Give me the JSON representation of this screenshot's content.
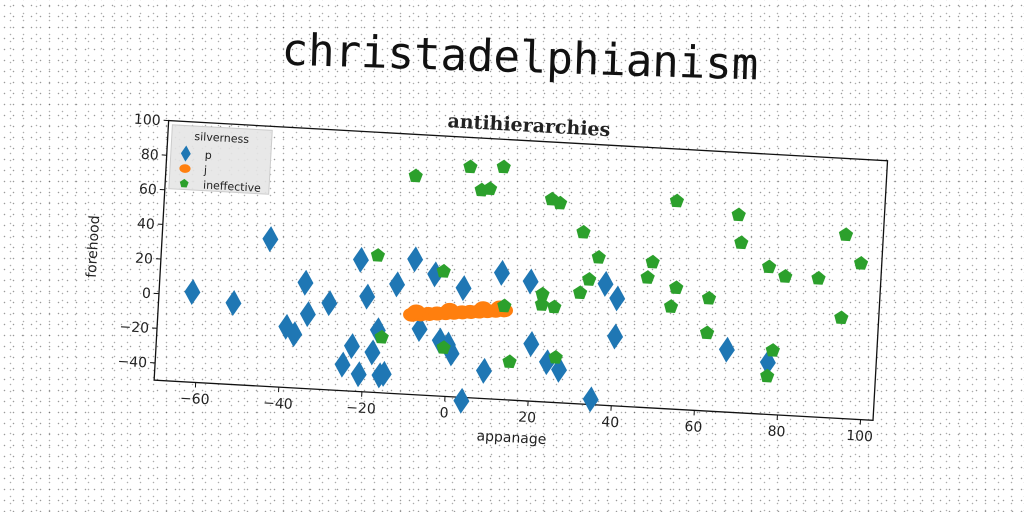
{
  "heading": "christadelphianism",
  "chart_data": {
    "type": "scatter",
    "title": "antihierarchies",
    "xlabel": "appanage",
    "ylabel": "forehood",
    "xlim": [
      -70,
      103
    ],
    "ylim": [
      -50,
      100
    ],
    "x_ticks": [
      -60,
      -40,
      -20,
      0,
      20,
      40,
      60,
      80,
      100
    ],
    "y_ticks": [
      -40,
      -20,
      0,
      20,
      40,
      60,
      80,
      100
    ],
    "grid": false,
    "legend": {
      "title": "silverness",
      "placement": "top-left"
    },
    "series": [
      {
        "name": "p",
        "marker": "diamond",
        "color": "#1f77b4",
        "points": [
          [
            -62,
            2
          ],
          [
            -52,
            -3
          ],
          [
            -44,
            35
          ],
          [
            -39,
            -15
          ],
          [
            -37,
            -19
          ],
          [
            -35,
            11
          ],
          [
            -34,
            -7
          ],
          [
            -29,
            0
          ],
          [
            -25,
            -35
          ],
          [
            -23,
            -24
          ],
          [
            -22,
            26
          ],
          [
            -21,
            -40
          ],
          [
            -20,
            5
          ],
          [
            -18,
            -27
          ],
          [
            -17,
            -14
          ],
          [
            -16,
            -40
          ],
          [
            -15,
            -39
          ],
          [
            -13,
            13
          ],
          [
            -9,
            28
          ],
          [
            -7,
            -12
          ],
          [
            -4,
            20
          ],
          [
            -2,
            -18
          ],
          [
            0,
            -20
          ],
          [
            1,
            -25
          ],
          [
            3,
            13
          ],
          [
            4,
            -52
          ],
          [
            9,
            -34
          ],
          [
            12,
            23
          ],
          [
            19,
            19
          ],
          [
            20,
            -17
          ],
          [
            24,
            -27
          ],
          [
            27,
            -31
          ],
          [
            35,
            -47
          ],
          [
            37,
            20
          ],
          [
            40,
            12
          ],
          [
            40,
            -10
          ],
          [
            67,
            -14
          ],
          [
            77,
            -20
          ]
        ]
      },
      {
        "name": "j",
        "marker": "circle",
        "color": "#ff7f0e",
        "points": [
          [
            -9,
            -4
          ],
          [
            -7,
            -3.5
          ],
          [
            -5,
            -3
          ],
          [
            -3,
            -2.5
          ],
          [
            -1,
            -2
          ],
          [
            1,
            -1.5
          ],
          [
            3,
            -1
          ],
          [
            5,
            -0.5
          ],
          [
            7,
            0
          ],
          [
            9,
            0.5
          ],
          [
            11,
            1
          ],
          [
            13,
            1.5
          ],
          [
            -8,
            -2
          ],
          [
            0,
            0
          ],
          [
            8,
            2
          ],
          [
            12,
            3
          ]
        ]
      },
      {
        "name": "ineffective",
        "marker": "pentagon",
        "color": "#2ca02c",
        "points": [
          [
            -10,
            76
          ],
          [
            3,
            83
          ],
          [
            11,
            84
          ],
          [
            6,
            70
          ],
          [
            8,
            71
          ],
          [
            -18,
            29
          ],
          [
            -2,
            22
          ],
          [
            -16,
            -18
          ],
          [
            -1,
            -22
          ],
          [
            13,
            4
          ],
          [
            15,
            -28
          ],
          [
            23,
            67
          ],
          [
            25,
            65
          ],
          [
            31,
            49
          ],
          [
            35,
            35
          ],
          [
            33,
            22
          ],
          [
            31,
            14
          ],
          [
            22,
            12
          ],
          [
            22,
            6
          ],
          [
            25,
            5
          ],
          [
            26,
            -24
          ],
          [
            48,
            34
          ],
          [
            47,
            25
          ],
          [
            53,
            70
          ],
          [
            54,
            20
          ],
          [
            53,
            9
          ],
          [
            62,
            15
          ],
          [
            62,
            -5
          ],
          [
            68,
            64
          ],
          [
            69,
            48
          ],
          [
            76,
            35
          ],
          [
            80,
            30
          ],
          [
            88,
            30
          ],
          [
            94,
            56
          ],
          [
            94,
            8
          ],
          [
            98,
            40
          ],
          [
            78,
            -13
          ],
          [
            77,
            -28
          ]
        ]
      }
    ]
  }
}
